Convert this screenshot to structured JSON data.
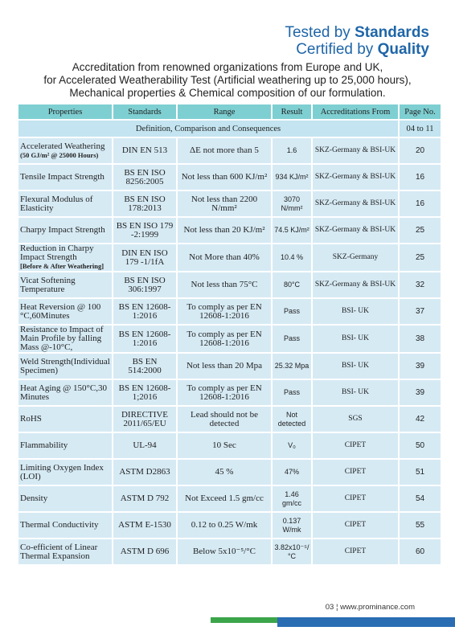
{
  "header": {
    "line1": "Tested by",
    "line1_bold": "Standards",
    "line2": "Certified by",
    "line2_bold": "Quality"
  },
  "intro": [
    "Accreditation from renowned organizations from Europe and UK,",
    "for Accelerated Weatherability Test (Artificial weathering up to  25,000 hours),",
    "Mechanical properties & Chemical composition of our formulation."
  ],
  "table": {
    "columns": [
      "Properties",
      "Standards",
      "Range",
      "Result",
      "Accreditations From",
      "Page No."
    ],
    "subheader": {
      "text": "Definition, Comparison and Consequences",
      "page": "04 to 11"
    },
    "rows": [
      {
        "property": "Accelerated Weathering",
        "property_note": "(50 GJ/m² @ 25000 Hours)",
        "standard": "DIN EN 513",
        "range": "ΔE not more than 5",
        "result": "1.6",
        "accreditation": "SKZ-Germany & BSI-UK",
        "page": 20
      },
      {
        "property": "Tensile Impact Strength",
        "standard": "BS EN ISO 8256:2005",
        "range": "Not less than 600 KJ/m²",
        "result": "934 KJ/m²",
        "accreditation": "SKZ-Germany & BSI-UK",
        "page": 16
      },
      {
        "property": "Flexural Modulus of Elasticity",
        "standard": "BS EN ISO 178:2013",
        "range": "Not less than 2200 N/mm²",
        "result": "3070 N/mm²",
        "accreditation": "SKZ-Germany & BSI-UK",
        "page": 16
      },
      {
        "property": "Charpy Impact Strength",
        "standard": "BS EN ISO 179 -2:1999",
        "range": "Not less than 20 KJ/m²",
        "result": "74.5 KJ/m²",
        "accreditation": "SKZ-Germany & BSI-UK",
        "page": 25
      },
      {
        "property": "Reduction in Charpy Impact Strength",
        "property_note": "[Before & After Weathering]",
        "standard": "DIN EN ISO 179 -1/1fA",
        "range": "Not More than 40%",
        "result": "10.4 %",
        "accreditation": "SKZ-Germany",
        "page": 25
      },
      {
        "property": "Vicat Softening Temperature",
        "standard": "BS EN ISO 306:1997",
        "range": "Not less than 75°C",
        "result": "80°C",
        "accreditation": "SKZ-Germany & BSI-UK",
        "page": 32
      },
      {
        "property": "Heat Reversion @ 100 °C,60Minutes",
        "standard": "BS EN 12608-1:2016",
        "range": "To comply as per EN 12608-1:2016",
        "result": "Pass",
        "accreditation": "BSI- UK",
        "page": 37
      },
      {
        "property": "Resistance to Impact of Main Profile by falling Mass @-10°C,",
        "standard": "BS EN 12608-1:2016",
        "range": "To comply as per EN 12608-1:2016",
        "result": "Pass",
        "accreditation": "BSI- UK",
        "page": 38
      },
      {
        "property": "Weld Strength(Individual Specimen)",
        "standard": "BS EN 514:2000",
        "range": "Not less than 20 Mpa",
        "result": "25.32 Mpa",
        "accreditation": "BSI- UK",
        "page": 39
      },
      {
        "property": "Heat Aging @ 150°C,30 Minutes",
        "standard": "BS EN 12608-1;2016",
        "range": "To comply as per EN 12608-1:2016",
        "result": "Pass",
        "accreditation": "BSI- UK",
        "page": 39
      },
      {
        "property": "RoHS",
        "standard": "DIRECTIVE 2011/65/EU",
        "range": "Lead should not be detected",
        "result": "Not detected",
        "accreditation": "SGS",
        "page": 42
      },
      {
        "property": "Flammability",
        "standard": "UL-94",
        "range": "10 Sec",
        "result": "V₀",
        "accreditation": "CIPET",
        "page": 50
      },
      {
        "property": "Limiting Oxygen Index (LOI)",
        "standard": "ASTM D2863",
        "range": "45 %",
        "result": "47%",
        "accreditation": "CIPET",
        "page": 51
      },
      {
        "property": "Density",
        "standard": "ASTM D 792",
        "range": "Not Exceed 1.5 gm/cc",
        "result": "1.46 gm/cc",
        "accreditation": "CIPET",
        "page": 54
      },
      {
        "property": "Thermal Conductivity",
        "standard": "ASTM E-1530",
        "range": "0.12 to 0.25 W/mk",
        "result": "0.137 W/mk",
        "accreditation": "CIPET",
        "page": 55
      },
      {
        "property": "Co-efficient of Linear Thermal Expansion",
        "standard": "ASTM D 696",
        "range": "Below 5x10⁻⁵/°C",
        "result": "3.82x10⁻⁵/°C",
        "accreditation": "CIPET",
        "page": 60
      }
    ]
  },
  "footer": {
    "page": "03",
    "url": "www.prominance.com"
  }
}
